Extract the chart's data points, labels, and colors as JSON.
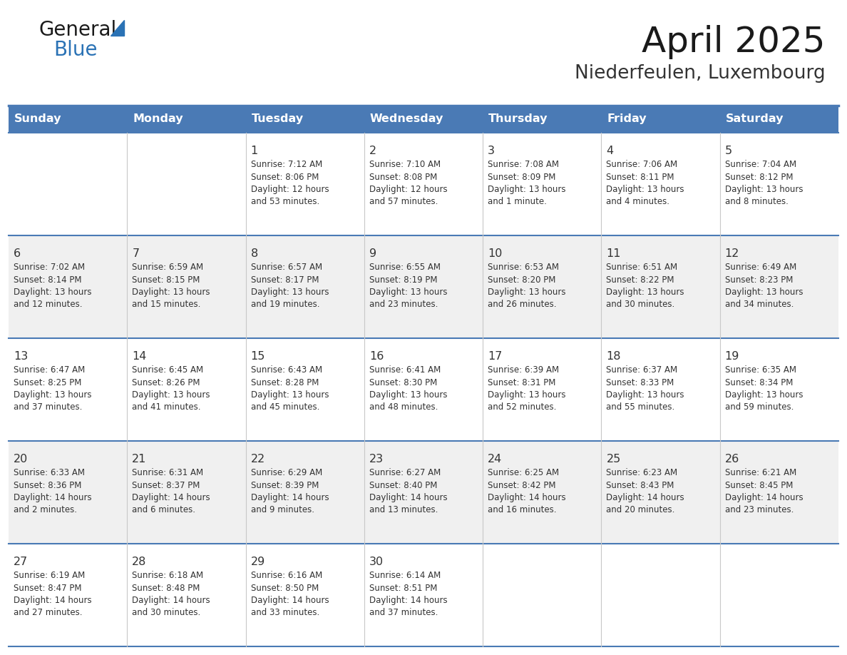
{
  "title": "April 2025",
  "subtitle": "Niederfeulen, Luxembourg",
  "header_color": "#4a7ab5",
  "header_text_color": "#ffffff",
  "day_names": [
    "Sunday",
    "Monday",
    "Tuesday",
    "Wednesday",
    "Thursday",
    "Friday",
    "Saturday"
  ],
  "background_color": "#ffffff",
  "cell_bg_even": "#f0f0f0",
  "divider_color": "#4a7ab5",
  "text_color": "#333333",
  "days": [
    {
      "day": 1,
      "col": 2,
      "row": 0,
      "sunrise": "7:12 AM",
      "sunset": "8:06 PM",
      "daylight_hours": 12,
      "daylight_minutes": 53
    },
    {
      "day": 2,
      "col": 3,
      "row": 0,
      "sunrise": "7:10 AM",
      "sunset": "8:08 PM",
      "daylight_hours": 12,
      "daylight_minutes": 57
    },
    {
      "day": 3,
      "col": 4,
      "row": 0,
      "sunrise": "7:08 AM",
      "sunset": "8:09 PM",
      "daylight_hours": 13,
      "daylight_minutes": 1
    },
    {
      "day": 4,
      "col": 5,
      "row": 0,
      "sunrise": "7:06 AM",
      "sunset": "8:11 PM",
      "daylight_hours": 13,
      "daylight_minutes": 4
    },
    {
      "day": 5,
      "col": 6,
      "row": 0,
      "sunrise": "7:04 AM",
      "sunset": "8:12 PM",
      "daylight_hours": 13,
      "daylight_minutes": 8
    },
    {
      "day": 6,
      "col": 0,
      "row": 1,
      "sunrise": "7:02 AM",
      "sunset": "8:14 PM",
      "daylight_hours": 13,
      "daylight_minutes": 12
    },
    {
      "day": 7,
      "col": 1,
      "row": 1,
      "sunrise": "6:59 AM",
      "sunset": "8:15 PM",
      "daylight_hours": 13,
      "daylight_minutes": 15
    },
    {
      "day": 8,
      "col": 2,
      "row": 1,
      "sunrise": "6:57 AM",
      "sunset": "8:17 PM",
      "daylight_hours": 13,
      "daylight_minutes": 19
    },
    {
      "day": 9,
      "col": 3,
      "row": 1,
      "sunrise": "6:55 AM",
      "sunset": "8:19 PM",
      "daylight_hours": 13,
      "daylight_minutes": 23
    },
    {
      "day": 10,
      "col": 4,
      "row": 1,
      "sunrise": "6:53 AM",
      "sunset": "8:20 PM",
      "daylight_hours": 13,
      "daylight_minutes": 26
    },
    {
      "day": 11,
      "col": 5,
      "row": 1,
      "sunrise": "6:51 AM",
      "sunset": "8:22 PM",
      "daylight_hours": 13,
      "daylight_minutes": 30
    },
    {
      "day": 12,
      "col": 6,
      "row": 1,
      "sunrise": "6:49 AM",
      "sunset": "8:23 PM",
      "daylight_hours": 13,
      "daylight_minutes": 34
    },
    {
      "day": 13,
      "col": 0,
      "row": 2,
      "sunrise": "6:47 AM",
      "sunset": "8:25 PM",
      "daylight_hours": 13,
      "daylight_minutes": 37
    },
    {
      "day": 14,
      "col": 1,
      "row": 2,
      "sunrise": "6:45 AM",
      "sunset": "8:26 PM",
      "daylight_hours": 13,
      "daylight_minutes": 41
    },
    {
      "day": 15,
      "col": 2,
      "row": 2,
      "sunrise": "6:43 AM",
      "sunset": "8:28 PM",
      "daylight_hours": 13,
      "daylight_minutes": 45
    },
    {
      "day": 16,
      "col": 3,
      "row": 2,
      "sunrise": "6:41 AM",
      "sunset": "8:30 PM",
      "daylight_hours": 13,
      "daylight_minutes": 48
    },
    {
      "day": 17,
      "col": 4,
      "row": 2,
      "sunrise": "6:39 AM",
      "sunset": "8:31 PM",
      "daylight_hours": 13,
      "daylight_minutes": 52
    },
    {
      "day": 18,
      "col": 5,
      "row": 2,
      "sunrise": "6:37 AM",
      "sunset": "8:33 PM",
      "daylight_hours": 13,
      "daylight_minutes": 55
    },
    {
      "day": 19,
      "col": 6,
      "row": 2,
      "sunrise": "6:35 AM",
      "sunset": "8:34 PM",
      "daylight_hours": 13,
      "daylight_minutes": 59
    },
    {
      "day": 20,
      "col": 0,
      "row": 3,
      "sunrise": "6:33 AM",
      "sunset": "8:36 PM",
      "daylight_hours": 14,
      "daylight_minutes": 2
    },
    {
      "day": 21,
      "col": 1,
      "row": 3,
      "sunrise": "6:31 AM",
      "sunset": "8:37 PM",
      "daylight_hours": 14,
      "daylight_minutes": 6
    },
    {
      "day": 22,
      "col": 2,
      "row": 3,
      "sunrise": "6:29 AM",
      "sunset": "8:39 PM",
      "daylight_hours": 14,
      "daylight_minutes": 9
    },
    {
      "day": 23,
      "col": 3,
      "row": 3,
      "sunrise": "6:27 AM",
      "sunset": "8:40 PM",
      "daylight_hours": 14,
      "daylight_minutes": 13
    },
    {
      "day": 24,
      "col": 4,
      "row": 3,
      "sunrise": "6:25 AM",
      "sunset": "8:42 PM",
      "daylight_hours": 14,
      "daylight_minutes": 16
    },
    {
      "day": 25,
      "col": 5,
      "row": 3,
      "sunrise": "6:23 AM",
      "sunset": "8:43 PM",
      "daylight_hours": 14,
      "daylight_minutes": 20
    },
    {
      "day": 26,
      "col": 6,
      "row": 3,
      "sunrise": "6:21 AM",
      "sunset": "8:45 PM",
      "daylight_hours": 14,
      "daylight_minutes": 23
    },
    {
      "day": 27,
      "col": 0,
      "row": 4,
      "sunrise": "6:19 AM",
      "sunset": "8:47 PM",
      "daylight_hours": 14,
      "daylight_minutes": 27
    },
    {
      "day": 28,
      "col": 1,
      "row": 4,
      "sunrise": "6:18 AM",
      "sunset": "8:48 PM",
      "daylight_hours": 14,
      "daylight_minutes": 30
    },
    {
      "day": 29,
      "col": 2,
      "row": 4,
      "sunrise": "6:16 AM",
      "sunset": "8:50 PM",
      "daylight_hours": 14,
      "daylight_minutes": 33
    },
    {
      "day": 30,
      "col": 3,
      "row": 4,
      "sunrise": "6:14 AM",
      "sunset": "8:51 PM",
      "daylight_hours": 14,
      "daylight_minutes": 37
    }
  ]
}
